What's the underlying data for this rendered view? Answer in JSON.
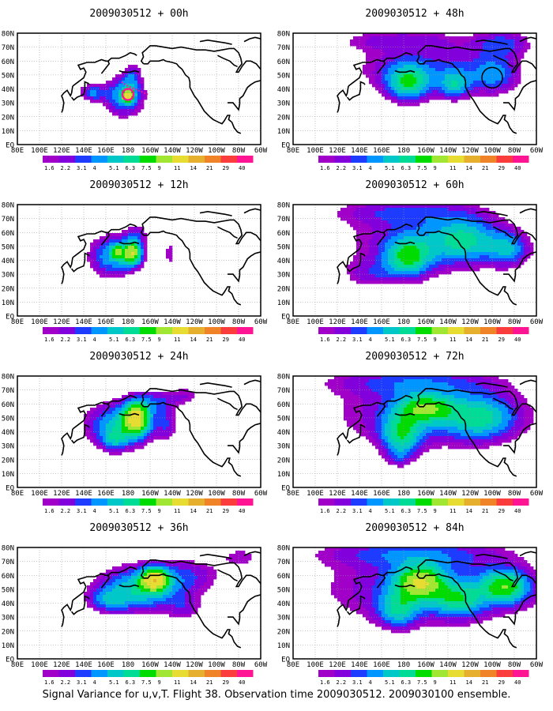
{
  "colors": {
    "frame": "#000000",
    "grid": "#9a9a9a",
    "coast": "#000000",
    "observation_marker": "#ff1493",
    "palette": [
      "#a000c8",
      "#8200dc",
      "#1e3cff",
      "#0096ff",
      "#00c8c8",
      "#00dc96",
      "#00dc00",
      "#a0e632",
      "#e6dc32",
      "#e6af2d",
      "#f08228",
      "#fa3c3c",
      "#ff1493"
    ]
  },
  "colorbar_labels": [
    "1.6",
    "2.2",
    "3.1",
    "4",
    "5.1",
    "6.3",
    "7.5",
    "9",
    "11",
    "14",
    "21",
    "29",
    "40"
  ],
  "x_tick_labels": [
    "80E",
    "100E",
    "120E",
    "140E",
    "160E",
    "180",
    "160W",
    "140W",
    "120W",
    "100W",
    "80W",
    "60W"
  ],
  "y_tick_labels": [
    "EQ",
    "10N",
    "20N",
    "30N",
    "40N",
    "50N",
    "60N",
    "70N",
    "80N"
  ],
  "caption": "Signal Variance for u,v,T. Flight 38. Observation time 2009030512. 2009030100 ensemble.",
  "chart_data": {
    "type": "heatmap",
    "x_range_deg_east": [
      80,
      300
    ],
    "y_range_deg_north": [
      0,
      80
    ],
    "x_ticks": [
      "80E",
      "100E",
      "120E",
      "140E",
      "160E",
      "180",
      "160W",
      "140W",
      "120W",
      "100W",
      "80W",
      "60W"
    ],
    "y_ticks": [
      "EQ",
      "10N",
      "20N",
      "30N",
      "40N",
      "50N",
      "60N",
      "70N",
      "80N"
    ],
    "contour_levels": [
      1.6,
      2.2,
      3.1,
      4,
      5.1,
      6.3,
      7.5,
      9,
      11,
      14,
      21,
      29,
      40
    ],
    "grid": "dotted",
    "panels": [
      {
        "title": "2009030512 + 00h",
        "lead_hours": 0,
        "observation": {
          "lon": 180,
          "lat": 36
        },
        "blobs": [
          {
            "lon": 177,
            "lat": 35,
            "rx": 17,
            "ry": 14,
            "peak": 5.5
          },
          {
            "lon": 148,
            "lat": 37,
            "rx": 12,
            "ry": 6,
            "peak": 4
          },
          {
            "lon": 184,
            "lat": 49,
            "rx": 8,
            "ry": 10,
            "peak": 2.5
          },
          {
            "lon": 180,
            "lat": 35,
            "rx": 5,
            "ry": 4,
            "peak": 9
          }
        ]
      },
      {
        "title": "2009030512 + 12h",
        "lead_hours": 12,
        "blobs": [
          {
            "lon": 165,
            "lat": 43,
            "rx": 20,
            "ry": 15,
            "peak": 5
          },
          {
            "lon": 184,
            "lat": 45,
            "rx": 9,
            "ry": 9,
            "peak": 9
          },
          {
            "lon": 188,
            "lat": 59,
            "rx": 11,
            "ry": 8,
            "peak": 2.4
          },
          {
            "lon": 218,
            "lat": 44,
            "rx": 6,
            "ry": 12,
            "peak": 2
          },
          {
            "lon": 170,
            "lat": 46,
            "rx": 5,
            "ry": 5,
            "peak": 5.5
          }
        ]
      },
      {
        "title": "2009030512 + 24h",
        "lead_hours": 24,
        "blobs": [
          {
            "lon": 172,
            "lat": 45,
            "rx": 30,
            "ry": 16,
            "peak": 5.5
          },
          {
            "lon": 188,
            "lat": 50,
            "rx": 12,
            "ry": 12,
            "peak": 9
          },
          {
            "lon": 206,
            "lat": 62,
            "rx": 18,
            "ry": 9,
            "peak": 2.6
          },
          {
            "lon": 233,
            "lat": 66,
            "rx": 16,
            "ry": 7,
            "peak": 2
          },
          {
            "lon": 215,
            "lat": 45,
            "rx": 9,
            "ry": 13,
            "peak": 2.4
          },
          {
            "lon": 168,
            "lat": 34,
            "rx": 12,
            "ry": 8,
            "peak": 3
          }
        ]
      },
      {
        "title": "2009030512 + 36h",
        "lead_hours": 36,
        "blobs": [
          {
            "lon": 190,
            "lat": 50,
            "rx": 38,
            "ry": 16,
            "peak": 6
          },
          {
            "lon": 204,
            "lat": 57,
            "rx": 12,
            "ry": 8,
            "peak": 9
          },
          {
            "lon": 236,
            "lat": 60,
            "rx": 32,
            "ry": 13,
            "peak": 2.5
          },
          {
            "lon": 162,
            "lat": 42,
            "rx": 18,
            "ry": 8,
            "peak": 3
          },
          {
            "lon": 232,
            "lat": 36,
            "rx": 16,
            "ry": 9,
            "peak": 2
          },
          {
            "lon": 282,
            "lat": 73,
            "rx": 18,
            "ry": 8,
            "peak": 2
          }
        ]
      },
      {
        "title": "2009030512 + 48h",
        "lead_hours": 48,
        "extra_circle": {
          "lon": 260,
          "lat": 48
        },
        "blobs": [
          {
            "lon": 200,
            "lat": 55,
            "rx": 70,
            "ry": 18,
            "peak": 3
          },
          {
            "lon": 184,
            "lat": 44,
            "rx": 20,
            "ry": 13,
            "peak": 6
          },
          {
            "lon": 226,
            "lat": 43,
            "rx": 14,
            "ry": 10,
            "peak": 4.5
          },
          {
            "lon": 262,
            "lat": 50,
            "rx": 22,
            "ry": 14,
            "peak": 3.5
          },
          {
            "lon": 175,
            "lat": 75,
            "rx": 60,
            "ry": 8,
            "peak": 2.2
          },
          {
            "lon": 270,
            "lat": 73,
            "rx": 26,
            "ry": 10,
            "peak": 3
          }
        ]
      },
      {
        "title": "2009030512 + 60h",
        "lead_hours": 60,
        "blobs": [
          {
            "lon": 200,
            "lat": 52,
            "rx": 75,
            "ry": 22,
            "peak": 3.2
          },
          {
            "lon": 184,
            "lat": 42,
            "rx": 20,
            "ry": 14,
            "peak": 6
          },
          {
            "lon": 235,
            "lat": 55,
            "rx": 30,
            "ry": 15,
            "peak": 4.5
          },
          {
            "lon": 275,
            "lat": 48,
            "rx": 18,
            "ry": 12,
            "peak": 4
          },
          {
            "lon": 180,
            "lat": 75,
            "rx": 70,
            "ry": 10,
            "peak": 2.6
          },
          {
            "lon": 150,
            "lat": 30,
            "rx": 25,
            "ry": 10,
            "peak": 2.2
          }
        ]
      },
      {
        "title": "2009030512 + 72h",
        "lead_hours": 72,
        "blobs": [
          {
            "lon": 205,
            "lat": 52,
            "rx": 90,
            "ry": 24,
            "peak": 3.5
          },
          {
            "lon": 178,
            "lat": 38,
            "rx": 18,
            "ry": 14,
            "peak": 5.5
          },
          {
            "lon": 200,
            "lat": 57,
            "rx": 25,
            "ry": 10,
            "peak": 6
          },
          {
            "lon": 250,
            "lat": 50,
            "rx": 30,
            "ry": 15,
            "peak": 4.5
          },
          {
            "lon": 185,
            "lat": 76,
            "rx": 80,
            "ry": 10,
            "peak": 2.8
          },
          {
            "lon": 176,
            "lat": 22,
            "rx": 12,
            "ry": 8,
            "peak": 2
          }
        ]
      },
      {
        "title": "2009030512 + 84h",
        "lead_hours": 84,
        "blobs": [
          {
            "lon": 200,
            "lat": 50,
            "rx": 95,
            "ry": 26,
            "peak": 3.6
          },
          {
            "lon": 195,
            "lat": 55,
            "rx": 22,
            "ry": 12,
            "peak": 8
          },
          {
            "lon": 272,
            "lat": 52,
            "rx": 22,
            "ry": 12,
            "peak": 7
          },
          {
            "lon": 230,
            "lat": 42,
            "rx": 22,
            "ry": 12,
            "peak": 4.5
          },
          {
            "lon": 175,
            "lat": 35,
            "rx": 18,
            "ry": 12,
            "peak": 4.5
          },
          {
            "lon": 185,
            "lat": 76,
            "rx": 85,
            "ry": 10,
            "peak": 3
          }
        ]
      }
    ]
  }
}
